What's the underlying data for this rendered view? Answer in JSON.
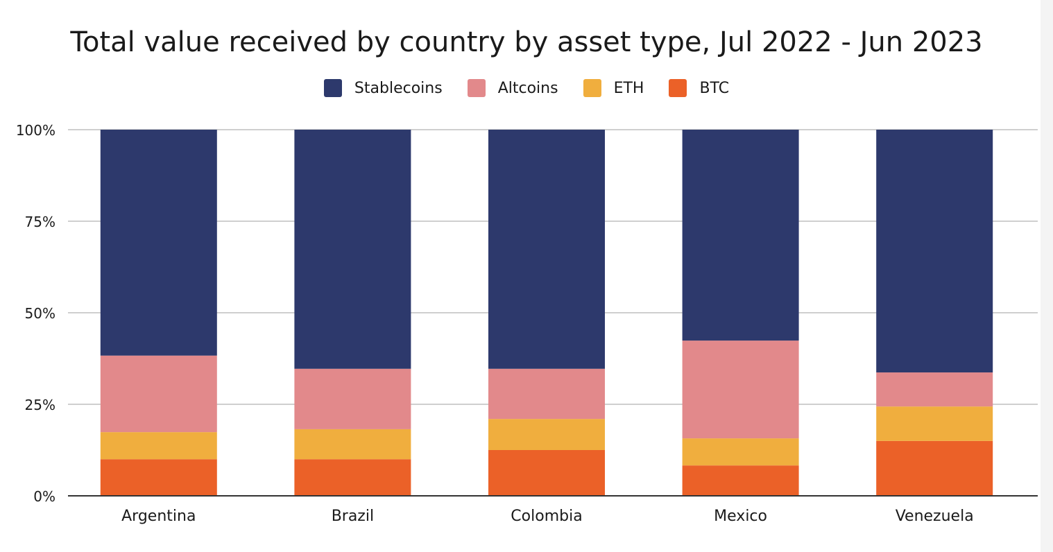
{
  "chart_data": {
    "type": "bar",
    "stacked": true,
    "title": "Total value received by country by asset type, Jul 2022 - Jun 2023",
    "xlabel": "",
    "ylabel": "",
    "ylim": [
      0,
      100
    ],
    "yticks": [
      "0%",
      "25%",
      "50%",
      "75%",
      "100%"
    ],
    "grid": true,
    "legend_position": "top",
    "categories": [
      "Argentina",
      "Brazil",
      "Colombia",
      "Mexico",
      "Venezuela"
    ],
    "series": [
      {
        "name": "BTC",
        "color": "#eb6128",
        "values": [
          10.0,
          10.0,
          12.5,
          8.3,
          15.0
        ]
      },
      {
        "name": "ETH",
        "color": "#f0ae3e",
        "values": [
          7.4,
          8.2,
          8.5,
          7.4,
          9.4
        ]
      },
      {
        "name": "Altcoins",
        "color": "#e2898b",
        "values": [
          20.9,
          16.5,
          13.7,
          26.7,
          9.3
        ]
      },
      {
        "name": "Stablecoins",
        "color": "#2d396c",
        "values": [
          61.7,
          65.3,
          65.3,
          57.6,
          66.3
        ]
      }
    ],
    "legend_order": [
      "Stablecoins",
      "Altcoins",
      "ETH",
      "BTC"
    ]
  }
}
